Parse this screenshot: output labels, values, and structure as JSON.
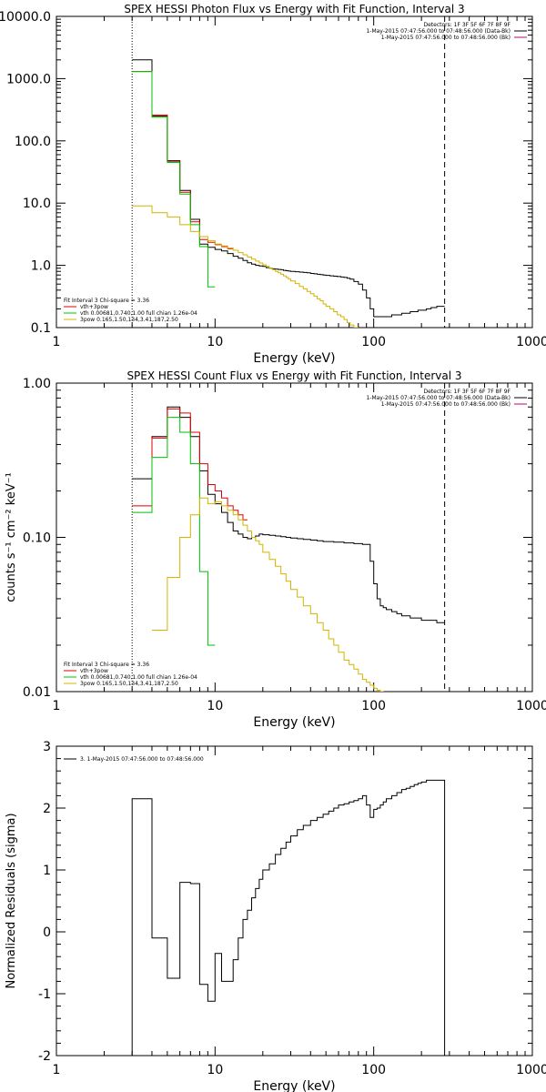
{
  "chart_data": [
    {
      "type": "line",
      "title": "SPEX HESSI Photon Flux vs Energy with Fit Function, Interval 3",
      "xlabel": "Energy (keV)",
      "ylabel": "",
      "x_scale": "log",
      "y_scale": "log",
      "xlim": [
        1,
        1000
      ],
      "ylim": [
        0.1,
        10000
      ],
      "x_ticks": [
        1,
        10,
        100,
        1000
      ],
      "x_tick_labels": [
        "1",
        "10",
        "100",
        "1000"
      ],
      "y_ticks": [
        0.1,
        1,
        10,
        100,
        1000,
        10000
      ],
      "y_tick_labels": [
        "0.1",
        "1.0",
        "10.0",
        "100.0",
        "1000.0",
        "10000.0"
      ],
      "vlines": [
        {
          "x": 3,
          "style": "dotted",
          "color": "#000000"
        },
        {
          "x": 280,
          "style": "dashed",
          "color": "#000000"
        }
      ],
      "legend_top_right": [
        {
          "text": "Detectors: 1F 3F 5F 6F 7F 8F 9F",
          "color": "",
          "line": false
        },
        {
          "text": "1-May-2015 07:47:56.000 to 07:48:56.000 (Data-Bk)",
          "color": "#000000",
          "line": true
        },
        {
          "text": "1-May-2015 07:47:56.000 to 07:48:56.000 (Bk)",
          "color": "#c00080",
          "line": true
        }
      ],
      "legend_bottom_left": [
        {
          "text": "Fit Interval 3   Chi-square = 3.36",
          "color": "",
          "line": false
        },
        {
          "text": "vth+3pow",
          "color": "#e00000",
          "line": true
        },
        {
          "text": "vth 0.00681,0.740,1.00  full chian 1.26e-04",
          "color": "#00c000",
          "line": true
        },
        {
          "text": "3pow 0.165,1.50,134,3.41,187,2.50",
          "color": "#d4b400",
          "line": true
        }
      ],
      "series": [
        {
          "color": "#000000",
          "edges": [
            3,
            4,
            5,
            6,
            7,
            8,
            9,
            10,
            11,
            12,
            13,
            14,
            15,
            16,
            17,
            18,
            19,
            20,
            21,
            22,
            23,
            24,
            25,
            26,
            27,
            28,
            29,
            30,
            32,
            34,
            36,
            38,
            40,
            42,
            44,
            46,
            48,
            50,
            53,
            56,
            59,
            62,
            65,
            68,
            71,
            75,
            80,
            85,
            90,
            95,
            100,
            105,
            110,
            115,
            120,
            130,
            140,
            150,
            160,
            170,
            180,
            190,
            200,
            215,
            230,
            250,
            280
          ],
          "values": [
            2000,
            250,
            48,
            16,
            5.5,
            2.2,
            1.95,
            1.8,
            1.7,
            1.55,
            1.4,
            1.3,
            1.2,
            1.1,
            1.05,
            1.0,
            0.98,
            0.96,
            0.92,
            0.9,
            0.88,
            0.87,
            0.86,
            0.85,
            0.83,
            0.82,
            0.81,
            0.8,
            0.79,
            0.78,
            0.77,
            0.76,
            0.74,
            0.73,
            0.72,
            0.71,
            0.7,
            0.69,
            0.68,
            0.67,
            0.66,
            0.65,
            0.64,
            0.62,
            0.6,
            0.55,
            0.5,
            0.4,
            0.3,
            0.2,
            0.15,
            0.15,
            0.15,
            0.15,
            0.15,
            0.16,
            0.16,
            0.17,
            0.17,
            0.18,
            0.18,
            0.19,
            0.19,
            0.2,
            0.21,
            0.22
          ]
        },
        {
          "color": "#e00000",
          "edges": [
            3,
            4,
            5,
            6,
            7,
            8,
            9,
            10,
            11,
            12,
            13
          ],
          "values": [
            1300,
            260,
            46,
            15,
            5.0,
            2.6,
            2.35,
            2.15,
            2.0,
            1.85
          ]
        },
        {
          "color": "#00c000",
          "edges": [
            3,
            4,
            5,
            6,
            7,
            8,
            9,
            10
          ],
          "values": [
            1300,
            240,
            45,
            14,
            4.5,
            2.0,
            0.45
          ]
        },
        {
          "color": "#d4b400",
          "edges": [
            3,
            4,
            5,
            6,
            7,
            8,
            9,
            10,
            11,
            12,
            13,
            14,
            15,
            16,
            17,
            18,
            19,
            20,
            21,
            22,
            23,
            24,
            25,
            26,
            27,
            28,
            29,
            30,
            32,
            34,
            36,
            38,
            40,
            42,
            44,
            46,
            48,
            50,
            53,
            56,
            59,
            62,
            65,
            68,
            71,
            75,
            80
          ],
          "values": [
            9,
            7,
            6,
            4.5,
            3.5,
            2.9,
            2.5,
            2.2,
            2.05,
            1.9,
            1.75,
            1.6,
            1.48,
            1.36,
            1.26,
            1.17,
            1.09,
            1.02,
            0.96,
            0.9,
            0.85,
            0.8,
            0.76,
            0.72,
            0.68,
            0.64,
            0.6,
            0.56,
            0.51,
            0.46,
            0.42,
            0.38,
            0.35,
            0.32,
            0.29,
            0.27,
            0.24,
            0.22,
            0.2,
            0.18,
            0.16,
            0.15,
            0.135,
            0.12,
            0.11,
            0.1
          ]
        }
      ]
    },
    {
      "type": "line",
      "title": "SPEX HESSI Count Flux vs Energy with Fit Function, Interval 3",
      "xlabel": "Energy (keV)",
      "ylabel": "counts s⁻¹ cm⁻² keV⁻¹",
      "x_scale": "log",
      "y_scale": "log",
      "xlim": [
        1,
        1000
      ],
      "ylim": [
        0.01,
        1
      ],
      "x_ticks": [
        1,
        10,
        100,
        1000
      ],
      "x_tick_labels": [
        "1",
        "10",
        "100",
        "1000"
      ],
      "y_ticks": [
        0.01,
        0.1,
        1
      ],
      "y_tick_labels": [
        "0.01",
        "0.10",
        "1.00"
      ],
      "vlines": [
        {
          "x": 3,
          "style": "dotted",
          "color": "#000000"
        },
        {
          "x": 280,
          "style": "dashed",
          "color": "#000000"
        }
      ],
      "legend_top_right": [
        {
          "text": "Detectors: 1F 3F 5F 6F 7F 8F 9F",
          "color": "",
          "line": false
        },
        {
          "text": "1-May-2015 07:47:56.000 to 07:48:56.000 (Data-Bk)",
          "color": "#000000",
          "line": true
        },
        {
          "text": "1-May-2015 07:47:56.000 to 07:48:56.000 (Bk)",
          "color": "#c00080",
          "line": true
        }
      ],
      "legend_bottom_left": [
        {
          "text": "Fit Interval 3   Chi-square = 3.36",
          "color": "",
          "line": false
        },
        {
          "text": "vth+3pow",
          "color": "#e00000",
          "line": true
        },
        {
          "text": "vth 0.00681,0.740,1.00  full chian 1.26e-04",
          "color": "#00c000",
          "line": true
        },
        {
          "text": "3pow 0.165,1.50,134,3.41,187,2.50",
          "color": "#d4b400",
          "line": true
        }
      ],
      "series": [
        {
          "color": "#000000",
          "edges": [
            3,
            4,
            5,
            6,
            7,
            8,
            9,
            10,
            11,
            12,
            13,
            14,
            15,
            16,
            17,
            18,
            19,
            20,
            22,
            24,
            26,
            28,
            30,
            33,
            36,
            40,
            44,
            48,
            52,
            56,
            60,
            65,
            70,
            75,
            80,
            85,
            90,
            95,
            100,
            105,
            110,
            115,
            120,
            130,
            140,
            150,
            160,
            170,
            180,
            190,
            200,
            215,
            230,
            250,
            280
          ],
          "values": [
            0.24,
            0.45,
            0.7,
            0.6,
            0.45,
            0.27,
            0.19,
            0.165,
            0.145,
            0.125,
            0.11,
            0.105,
            0.1,
            0.098,
            0.1,
            0.102,
            0.105,
            0.104,
            0.103,
            0.102,
            0.101,
            0.1,
            0.099,
            0.098,
            0.097,
            0.096,
            0.095,
            0.094,
            0.094,
            0.093,
            0.093,
            0.092,
            0.092,
            0.091,
            0.091,
            0.09,
            0.09,
            0.07,
            0.05,
            0.04,
            0.036,
            0.035,
            0.034,
            0.033,
            0.032,
            0.031,
            0.031,
            0.03,
            0.03,
            0.03,
            0.029,
            0.029,
            0.029,
            0.028
          ]
        },
        {
          "color": "#e00000",
          "edges": [
            3,
            4,
            5,
            6,
            7,
            8,
            9,
            10,
            11,
            12,
            13,
            14,
            15,
            16
          ],
          "values": [
            0.16,
            0.44,
            0.68,
            0.64,
            0.48,
            0.3,
            0.22,
            0.2,
            0.18,
            0.16,
            0.15,
            0.14,
            0.13
          ]
        },
        {
          "color": "#00c000",
          "edges": [
            3,
            4,
            5,
            6,
            7,
            8,
            9,
            10
          ],
          "values": [
            0.145,
            0.33,
            0.6,
            0.48,
            0.3,
            0.06,
            0.02
          ]
        },
        {
          "color": "#d4b400",
          "edges": [
            4,
            5,
            6,
            7,
            8,
            9,
            10,
            11,
            12,
            13,
            14,
            15,
            16,
            17,
            18,
            19,
            20,
            22,
            24,
            26,
            28,
            30,
            33,
            36,
            40,
            44,
            48,
            52,
            56,
            60,
            65,
            70,
            75,
            80,
            85,
            90,
            95,
            100,
            105,
            110,
            115,
            120
          ],
          "values": [
            0.025,
            0.055,
            0.1,
            0.14,
            0.18,
            0.165,
            0.17,
            0.16,
            0.15,
            0.14,
            0.13,
            0.12,
            0.11,
            0.1,
            0.095,
            0.09,
            0.08,
            0.072,
            0.065,
            0.058,
            0.052,
            0.046,
            0.041,
            0.036,
            0.032,
            0.028,
            0.025,
            0.022,
            0.02,
            0.018,
            0.016,
            0.015,
            0.014,
            0.013,
            0.012,
            0.0115,
            0.011,
            0.0105,
            0.0102,
            0.01,
            0.0095
          ]
        }
      ]
    },
    {
      "type": "line",
      "title": "",
      "xlabel": "Energy (keV)",
      "ylabel": "Normalized Residuals (sigma)",
      "x_scale": "log",
      "y_scale": "linear",
      "xlim": [
        1,
        1000
      ],
      "ylim": [
        -2,
        3
      ],
      "x_ticks": [
        1,
        10,
        100,
        1000
      ],
      "x_tick_labels": [
        "1",
        "10",
        "100",
        "1000"
      ],
      "y_ticks": [
        -2,
        -1,
        0,
        1,
        2,
        3
      ],
      "y_tick_labels": [
        "-2",
        "-1",
        "0",
        "1",
        "2",
        "3"
      ],
      "vlines": [],
      "legend_top_right": [],
      "legend_bottom_left": [],
      "legend_top_left": [
        {
          "text": "3. 1-May-2015 07:47:56.000 to 07:48:56.000",
          "color": "#000000",
          "line": true
        }
      ],
      "series": [
        {
          "color": "#000000",
          "drop_to_min": true,
          "edges": [
            3,
            4,
            5,
            6,
            7,
            8,
            9,
            10,
            11,
            12,
            13,
            14,
            15,
            16,
            17,
            18,
            19,
            20,
            22,
            24,
            26,
            28,
            30,
            33,
            36,
            40,
            44,
            48,
            52,
            56,
            60,
            65,
            70,
            75,
            80,
            85,
            90,
            95,
            100,
            105,
            110,
            115,
            120,
            130,
            140,
            150,
            160,
            170,
            180,
            190,
            200,
            215,
            230,
            250,
            280
          ],
          "values": [
            2.15,
            -0.1,
            -0.75,
            0.8,
            0.78,
            -0.85,
            -1.12,
            -0.35,
            -0.8,
            -0.8,
            -0.45,
            -0.1,
            0.2,
            0.35,
            0.55,
            0.7,
            0.85,
            1.0,
            1.1,
            1.25,
            1.35,
            1.45,
            1.55,
            1.65,
            1.72,
            1.8,
            1.85,
            1.9,
            1.95,
            2.0,
            2.05,
            2.07,
            2.1,
            2.12,
            2.15,
            2.2,
            2.05,
            1.85,
            1.98,
            2.0,
            2.05,
            2.1,
            2.15,
            2.2,
            2.25,
            2.3,
            2.32,
            2.35,
            2.38,
            2.4,
            2.42,
            2.45,
            2.45,
            2.45
          ]
        }
      ]
    }
  ]
}
